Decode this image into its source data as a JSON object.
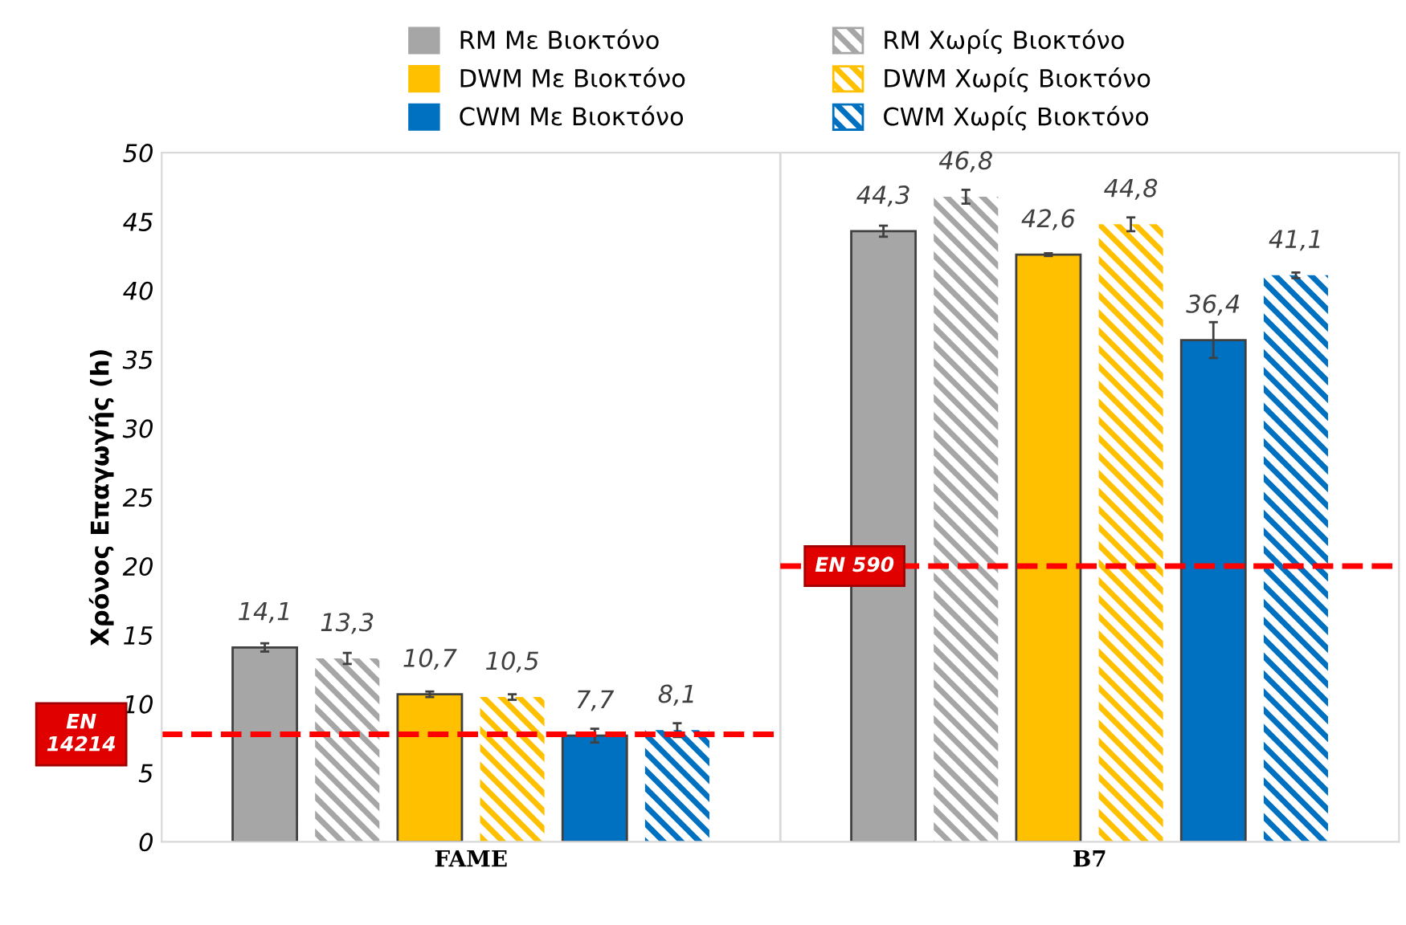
{
  "chart_data": {
    "type": "bar",
    "ylabel": "Χρόνος Επαγωγής (h)",
    "categories": [
      "FAME",
      "B7"
    ],
    "series": [
      {
        "name": "RM Με Βιοκτόνο",
        "color": "#a6a6a6",
        "values": [
          14.1,
          44.3
        ],
        "errors": [
          0.3,
          0.4
        ],
        "value_labels": [
          "14,1",
          "44,3"
        ]
      },
      {
        "name": "RM Χωρίς Βιοκτόνο",
        "color": "#a6a6a6",
        "values": [
          13.3,
          46.8
        ],
        "errors": [
          0.4,
          0.5
        ],
        "value_labels": [
          "13,3",
          "46,8"
        ]
      },
      {
        "name": "DWM Με Βιοκτόνο",
        "color": "#ffc000",
        "values": [
          10.7,
          42.6
        ],
        "errors": [
          0.2,
          0.1
        ],
        "value_labels": [
          "10,7",
          "42,6"
        ]
      },
      {
        "name": "DWM Χωρίς Βιοκτόνο",
        "color": "#ffc000",
        "values": [
          10.5,
          44.8
        ],
        "errors": [
          0.2,
          0.5
        ],
        "value_labels": [
          "10,5",
          "44,8"
        ]
      },
      {
        "name": "CWM Με Βιοκτόνο",
        "color": "#0070c0",
        "values": [
          7.7,
          36.4
        ],
        "errors": [
          0.5,
          1.3
        ],
        "value_labels": [
          "7,7",
          "36,4"
        ]
      },
      {
        "name": "CWM Χωρίς Βιοκτόνο",
        "color": "#0070c0",
        "values": [
          8.1,
          41.1
        ],
        "errors": [
          0.5,
          0.2
        ],
        "value_labels": [
          "8,1",
          "41,1"
        ]
      }
    ],
    "ylim": [
      0,
      50
    ],
    "yticks": [
      0,
      5,
      10,
      15,
      20,
      25,
      30,
      35,
      40,
      45,
      50
    ],
    "ref_lines": [
      {
        "axis": "y",
        "value": 7.8,
        "label": "EN\n14214",
        "color": "#ff0000",
        "line_style": "dashed"
      },
      {
        "axis": "y",
        "value": 20,
        "label": "EN 590",
        "color": "#ff0000",
        "line_style": "dashed"
      }
    ],
    "grid": false,
    "legend": "top"
  }
}
